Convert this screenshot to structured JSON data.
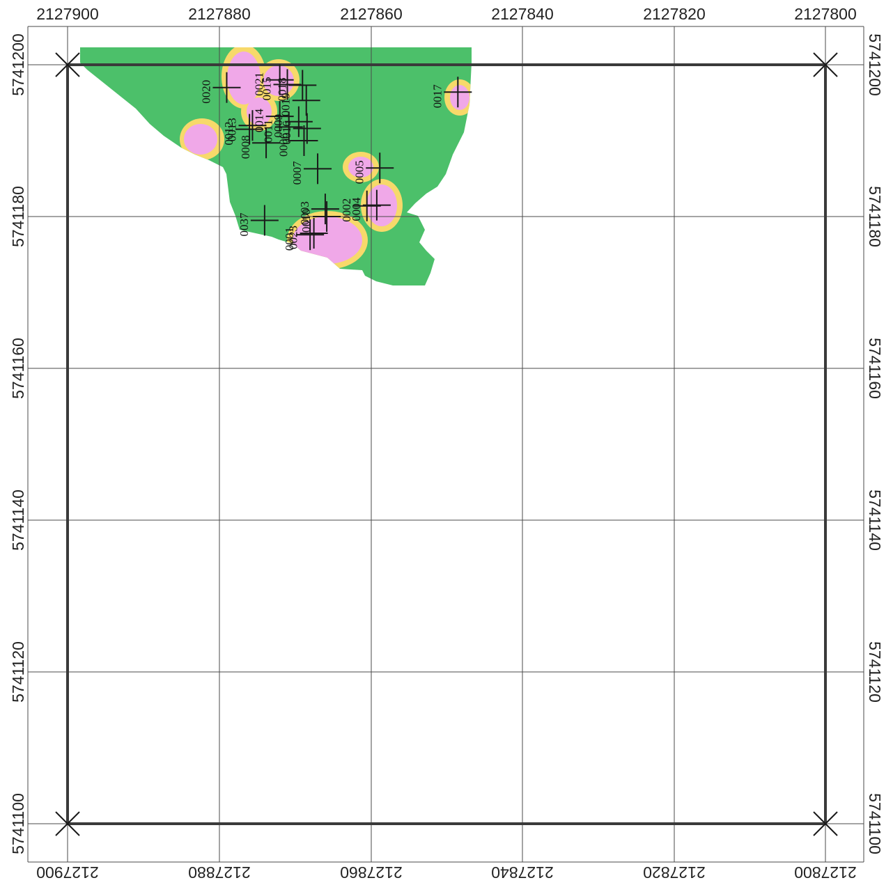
{
  "map": {
    "x_ticks": [
      "2127900",
      "2127880",
      "2127860",
      "2127840",
      "2127820",
      "2127800"
    ],
    "y_ticks": [
      "5741200",
      "5741180",
      "5741160",
      "5741140",
      "5741120",
      "5741100"
    ],
    "colors": {
      "field": "#4cc06a",
      "anomaly": "#f0a8e8",
      "halo": "#f7d96a",
      "grid": "#4a4a4a",
      "frame": "#3a3a3a",
      "marker": "#1a1a1a"
    }
  },
  "stations": [
    {
      "id": "0020",
      "x": 2127879.0,
      "y": 5741197.0
    },
    {
      "id": "0013",
      "x": 2127875.6,
      "y": 5741192.0
    },
    {
      "id": "0008",
      "x": 2127873.8,
      "y": 5741189.7
    },
    {
      "id": "0012",
      "x": 2127876.0,
      "y": 5741191.5
    },
    {
      "id": "0014",
      "x": 2127872.0,
      "y": 5741193.2
    },
    {
      "id": "0021",
      "x": 2127872.0,
      "y": 5741198.0
    },
    {
      "id": "0019",
      "x": 2127868.5,
      "y": 5741195.3
    },
    {
      "id": "0016",
      "x": 2127868.4,
      "y": 5741191.6
    },
    {
      "id": "0015",
      "x": 2127871.0,
      "y": 5741197.4
    },
    {
      "id": "0018",
      "x": 2127869.0,
      "y": 5741197.3
    },
    {
      "id": "0011",
      "x": 2127870.8,
      "y": 5741191.8
    },
    {
      "id": "0009",
      "x": 2127869.5,
      "y": 5741192.5
    },
    {
      "id": "0006",
      "x": 2127868.8,
      "y": 5741190.0
    },
    {
      "id": "0007",
      "x": 2127867.0,
      "y": 5741186.3
    },
    {
      "id": "0005",
      "x": 2127858.8,
      "y": 5741186.4
    },
    {
      "id": "0004",
      "x": 2127859.2,
      "y": 5741181.5
    },
    {
      "id": "0003",
      "x": 2127866.0,
      "y": 5741181.0
    },
    {
      "id": "0002",
      "x": 2127860.5,
      "y": 5741181.4
    },
    {
      "id": "0001",
      "x": 2127868.0,
      "y": 5741177.6
    },
    {
      "id": "0010",
      "x": 2127865.8,
      "y": 5741180.0
    },
    {
      "id": "0023",
      "x": 2127867.5,
      "y": 5741177.8
    },
    {
      "id": "0037",
      "x": 2127874.0,
      "y": 5741179.5
    },
    {
      "id": "0017",
      "x": 2127848.5,
      "y": 5741196.4
    }
  ]
}
